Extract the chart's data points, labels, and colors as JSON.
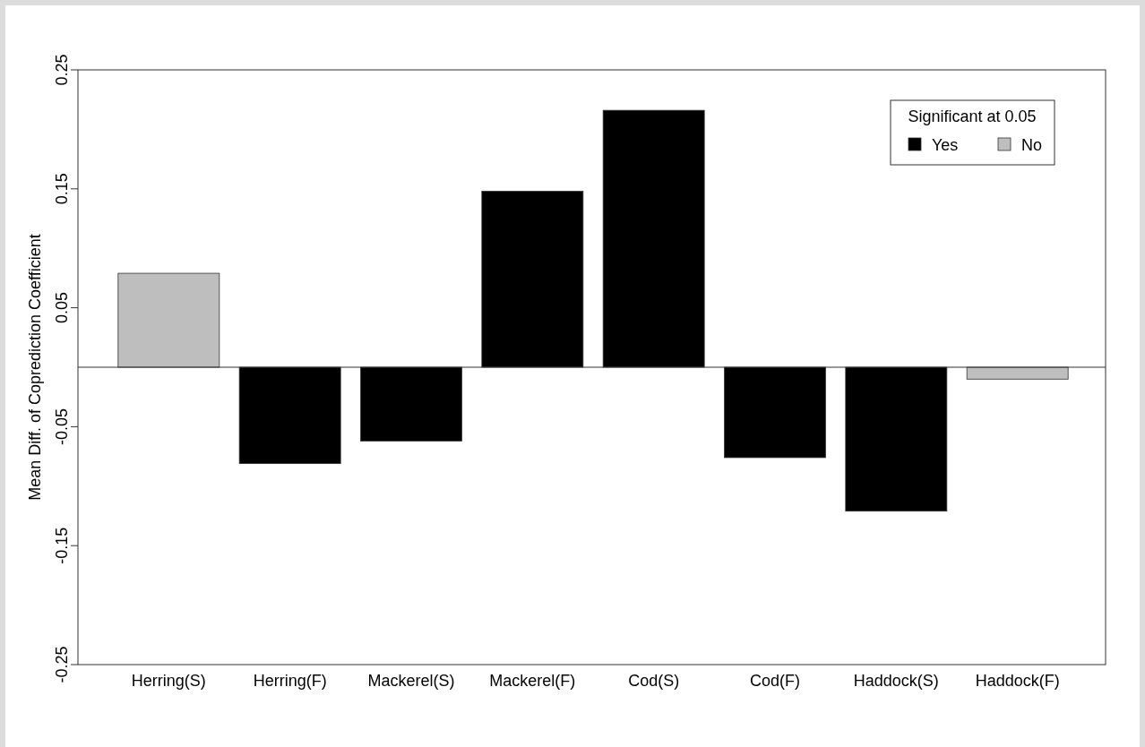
{
  "chart_data": {
    "type": "bar",
    "ylabel": "Mean Diff. of Coprediction Coefficient",
    "legend_title": "Significant at 0.05",
    "categories": [
      "Herring(S)",
      "Herring(F)",
      "Mackerel(S)",
      "Mackerel(F)",
      "Cod(S)",
      "Cod(F)",
      "Haddock(S)",
      "Haddock(F)"
    ],
    "series": [
      {
        "name": "Yes",
        "color": "#000000",
        "values": [
          null,
          -0.081,
          -0.062,
          0.148,
          0.216,
          -0.076,
          -0.121,
          null
        ]
      },
      {
        "name": "No",
        "color": "#bebebe",
        "values": [
          0.079,
          null,
          null,
          null,
          null,
          null,
          null,
          -0.01
        ]
      }
    ],
    "ylim": [
      -0.25,
      0.25
    ],
    "yticks": [
      -0.25,
      -0.15,
      -0.05,
      0.05,
      0.15,
      0.25
    ],
    "grid": false,
    "legend": "top right"
  }
}
